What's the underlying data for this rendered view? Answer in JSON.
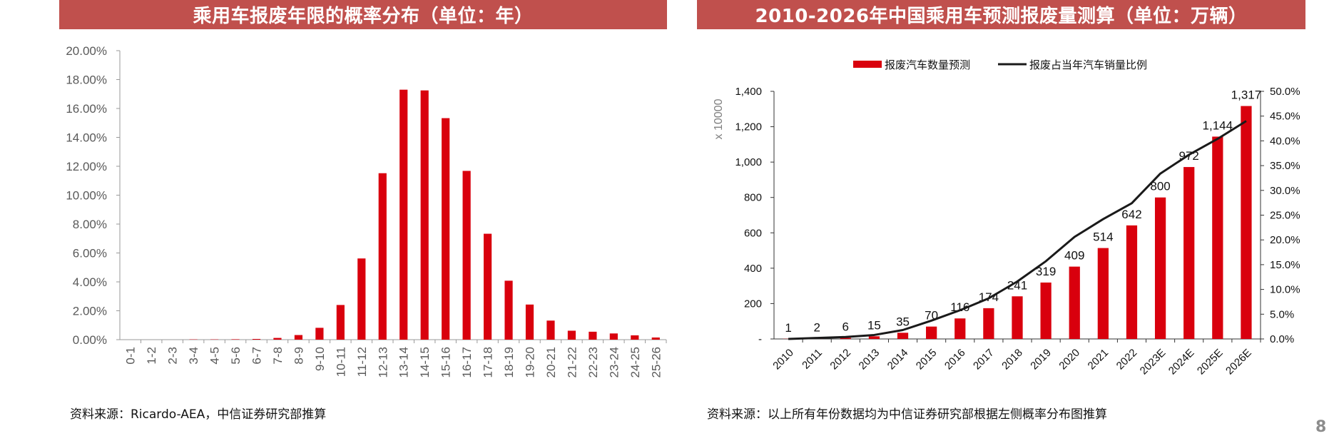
{
  "left": {
    "title": "乘用车报废年限的概率分布（单位：年）",
    "source": "资料来源：Ricardo-AEA，中信证券研究部推算"
  },
  "right": {
    "title": "2010-2026年中国乘用车预测报废量测算（单位：万辆）",
    "source": "资料来源：以上所有年份数据均为中信证券研究部根据左侧概率分布图推算"
  },
  "page_number": "8",
  "colors": {
    "bar": "#d9000d",
    "line": "#1a1a1a",
    "title_bg": "#c0504d",
    "axis_text": "#595959"
  },
  "chart_data": [
    {
      "type": "bar",
      "categories": [
        "0-1",
        "1-2",
        "2-3",
        "3-4",
        "4-5",
        "5-6",
        "6-7",
        "7-8",
        "8-9",
        "9-10",
        "10-11",
        "11-12",
        "12-13",
        "13-14",
        "14-15",
        "15-16",
        "16-17",
        "17-18",
        "18-19",
        "19-20",
        "20-21",
        "21-22",
        "22-23",
        "23-24",
        "24-25",
        "25-26"
      ],
      "values": [
        0.0,
        0.0,
        0.0,
        0.02,
        0.02,
        0.03,
        0.05,
        0.12,
        0.32,
        0.82,
        2.4,
        5.62,
        11.52,
        17.3,
        17.25,
        15.33,
        11.68,
        7.33,
        4.08,
        2.43,
        1.32,
        0.62,
        0.55,
        0.43,
        0.3,
        0.15
      ],
      "ylim": [
        0,
        20
      ],
      "yticks": [
        "0.00%",
        "2.00%",
        "4.00%",
        "6.00%",
        "8.00%",
        "10.00%",
        "12.00%",
        "14.00%",
        "16.00%",
        "18.00%",
        "20.00%"
      ],
      "grid": false,
      "legend": "none"
    },
    {
      "type": "bar+line",
      "categories": [
        "2010",
        "2011",
        "2012",
        "2013",
        "2014",
        "2015",
        "2016",
        "2017",
        "2018",
        "2019",
        "2020",
        "2021",
        "2022",
        "2023E",
        "2024E",
        "2025E",
        "2026E"
      ],
      "series": [
        {
          "name": "报废汽车数量预测",
          "type": "bar",
          "axis": "left",
          "values": [
            1,
            2,
            6,
            15,
            35,
            70,
            116,
            174,
            241,
            319,
            409,
            514,
            642,
            800,
            972,
            1144,
            1317
          ],
          "labels": [
            "1",
            "2",
            "6",
            "15",
            "35",
            "70",
            "116",
            "174",
            "241",
            "319",
            "409",
            "514",
            "642",
            "800",
            "972",
            "1,144",
            "1,317"
          ]
        },
        {
          "name": "报废占当年汽车销量比例",
          "type": "line",
          "axis": "right",
          "values": [
            0.0,
            0.2,
            0.4,
            0.8,
            1.8,
            3.7,
            5.8,
            8.2,
            11.6,
            15.7,
            20.6,
            24.2,
            27.4,
            33.4,
            37.2,
            40.4,
            44.0
          ]
        }
      ],
      "y_left": {
        "lim": [
          0,
          1400
        ],
        "ticks": [
          "-",
          "200",
          "400",
          "600",
          "800",
          "1,000",
          "1,200",
          "1,400"
        ],
        "label": "x 10000"
      },
      "y_right": {
        "lim": [
          0,
          50
        ],
        "ticks": [
          "0.0%",
          "5.0%",
          "10.0%",
          "15.0%",
          "20.0%",
          "25.0%",
          "30.0%",
          "35.0%",
          "40.0%",
          "45.0%",
          "50.0%"
        ]
      },
      "grid": false,
      "legend": "top-center"
    }
  ]
}
